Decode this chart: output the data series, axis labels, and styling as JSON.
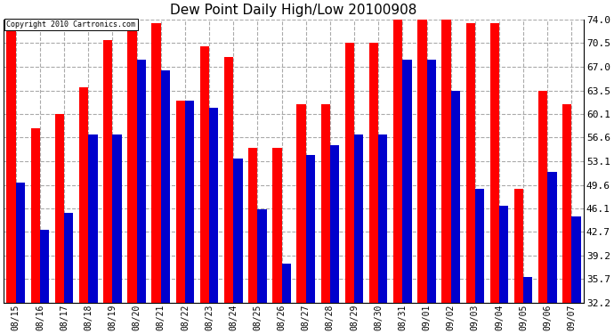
{
  "title": "Dew Point Daily High/Low 20100908",
  "copyright": "Copyright 2010 Cartronics.com",
  "dates": [
    "08/15",
    "08/16",
    "08/17",
    "08/18",
    "08/19",
    "08/20",
    "08/21",
    "08/22",
    "08/23",
    "08/24",
    "08/25",
    "08/26",
    "08/27",
    "08/28",
    "08/29",
    "08/30",
    "08/31",
    "09/01",
    "09/02",
    "09/03",
    "09/04",
    "09/05",
    "09/06",
    "09/07"
  ],
  "highs": [
    74.0,
    58.0,
    60.0,
    64.0,
    71.0,
    74.5,
    73.5,
    62.0,
    70.0,
    68.5,
    55.0,
    55.0,
    61.5,
    61.5,
    70.5,
    70.5,
    74.0,
    74.0,
    74.0,
    73.5,
    73.5,
    49.0,
    63.5,
    61.5
  ],
  "lows": [
    50.0,
    43.0,
    45.5,
    57.0,
    57.0,
    68.0,
    66.5,
    62.0,
    61.0,
    53.5,
    46.0,
    38.0,
    54.0,
    55.5,
    57.0,
    57.0,
    68.0,
    68.0,
    63.5,
    49.0,
    46.5,
    36.0,
    51.5,
    45.0
  ],
  "high_color": "#ff0000",
  "low_color": "#0000cc",
  "bg_color": "#ffffff",
  "grid_color": "#aaaaaa",
  "ylim_min": 32.2,
  "ylim_max": 74.0,
  "yticks": [
    32.2,
    35.7,
    39.2,
    42.7,
    46.1,
    49.6,
    53.1,
    56.6,
    60.1,
    63.5,
    67.0,
    70.5,
    74.0
  ],
  "bar_width": 0.38
}
